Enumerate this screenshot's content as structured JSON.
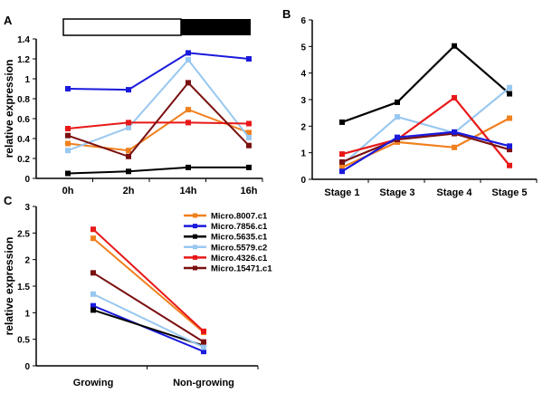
{
  "series_colors": {
    "Micro.8007.c1": "#f0801e",
    "Micro.7856.c1": "#1a1adc",
    "Micro.5635.c1": "#000000",
    "Micro.5579.c2": "#99c8f0",
    "Micro.4326.c1": "#e81818",
    "Micro.15471.c1": "#7a1010"
  },
  "chart_data": [
    {
      "panel": "A",
      "type": "line",
      "ylabel": "relative  expression",
      "categories": [
        "0h",
        "2h",
        "14h",
        "16h"
      ],
      "ylim": [
        0,
        1.4
      ],
      "yticks": [
        "0",
        "0.2",
        "0.4",
        "0.6",
        "0.8",
        "1",
        "1.2",
        "1.4"
      ],
      "light_dark_bar": {
        "light": [
          "0h",
          "2h"
        ],
        "dark": [
          "14h",
          "16h"
        ]
      },
      "series": [
        {
          "name": "Micro.8007.c1",
          "values": [
            0.35,
            0.28,
            0.69,
            0.46
          ]
        },
        {
          "name": "Micro.7856.c1",
          "values": [
            0.9,
            0.89,
            1.26,
            1.2
          ]
        },
        {
          "name": "Micro.5635.c1",
          "values": [
            0.05,
            0.07,
            0.11,
            0.11
          ]
        },
        {
          "name": "Micro.5579.c2",
          "values": [
            0.28,
            0.51,
            1.19,
            0.41
          ]
        },
        {
          "name": "Micro.4326.c1",
          "values": [
            0.5,
            0.56,
            0.56,
            0.55
          ]
        },
        {
          "name": "Micro.15471.c1",
          "values": [
            0.43,
            0.22,
            0.96,
            0.33
          ]
        }
      ]
    },
    {
      "panel": "B",
      "type": "line",
      "ylabel": "",
      "categories": [
        "Stage 1",
        "Stage 3",
        "Stage 4",
        "Stage 5"
      ],
      "ylim": [
        0,
        6
      ],
      "yticks": [
        "0",
        "1",
        "2",
        "3",
        "4",
        "5",
        "6"
      ],
      "series": [
        {
          "name": "Micro.5635.c1",
          "values": [
            2.15,
            2.9,
            5.02,
            3.22
          ]
        },
        {
          "name": "Micro.5579.c2",
          "values": [
            0.55,
            2.35,
            1.75,
            3.45
          ]
        },
        {
          "name": "Micro.8007.c1",
          "values": [
            0.45,
            1.4,
            1.2,
            2.3
          ]
        },
        {
          "name": "Micro.4326.c1",
          "values": [
            0.95,
            1.5,
            3.07,
            0.52
          ]
        },
        {
          "name": "Micro.15471.c1",
          "values": [
            0.65,
            1.5,
            1.72,
            1.12
          ]
        },
        {
          "name": "Micro.7856.c1",
          "values": [
            0.3,
            1.58,
            1.78,
            1.25
          ]
        }
      ]
    },
    {
      "panel": "C",
      "type": "line",
      "ylabel": "relative  expression",
      "categories": [
        "Growing",
        "Non-growing"
      ],
      "ylim": [
        0,
        3
      ],
      "yticks": [
        "0",
        "0.5",
        "1",
        "1.5",
        "2",
        "2.5",
        "3"
      ],
      "legend": [
        "Micro.8007.c1",
        "Micro.7856.c1",
        "Micro.5635.c1",
        "Micro.5579.c2",
        "Micro.4326.c1",
        "Micro.15471.c1"
      ],
      "legend_position": "top-right",
      "series": [
        {
          "name": "Micro.8007.c1",
          "values": [
            2.4,
            0.63
          ]
        },
        {
          "name": "Micro.7856.c1",
          "values": [
            1.13,
            0.27
          ]
        },
        {
          "name": "Micro.5635.c1",
          "values": [
            1.05,
            0.38
          ]
        },
        {
          "name": "Micro.5579.c2",
          "values": [
            1.35,
            0.35
          ]
        },
        {
          "name": "Micro.4326.c1",
          "values": [
            2.57,
            0.65
          ]
        },
        {
          "name": "Micro.15471.c1",
          "values": [
            1.75,
            0.45
          ]
        }
      ]
    }
  ]
}
